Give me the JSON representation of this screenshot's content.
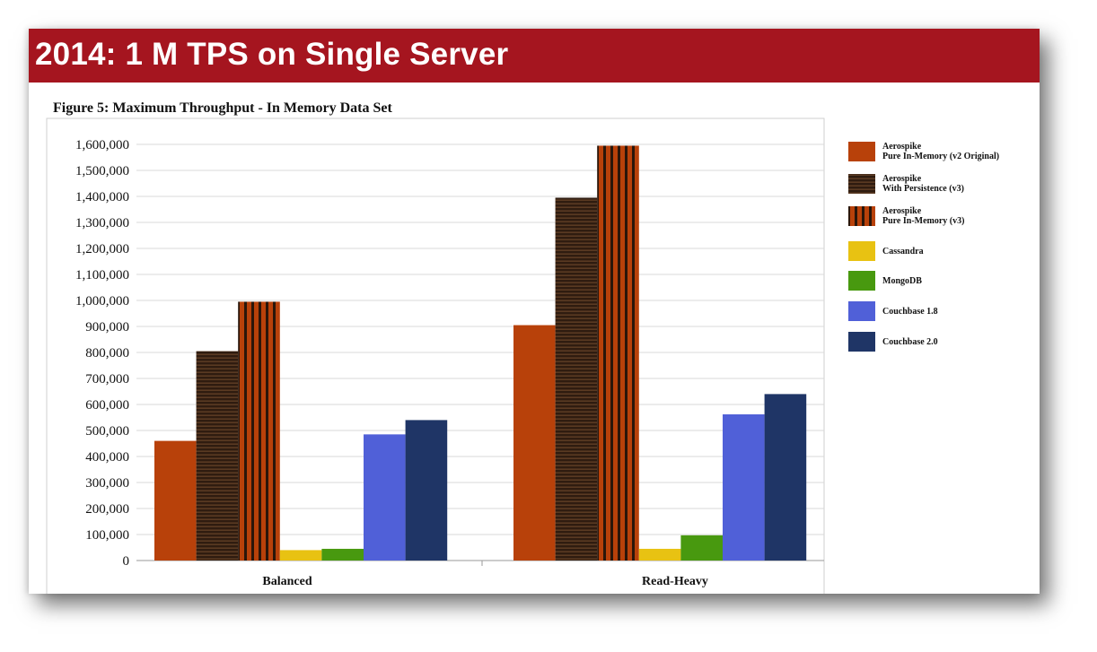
{
  "slide": {
    "title": "2014: 1 M TPS on Single Server"
  },
  "chart_data": {
    "type": "bar",
    "title": "Figure 5: Maximum Throughput - In Memory Data Set",
    "categories": [
      "Balanced",
      "Read-Heavy"
    ],
    "ylim": [
      0,
      1600000
    ],
    "yticks": [
      "0",
      "100,000",
      "200,000",
      "300,000",
      "400,000",
      "500,000",
      "600,000",
      "700,000",
      "800,000",
      "900,000",
      "1,000,000",
      "1,100,000",
      "1,200,000",
      "1,300,000",
      "1,400,000",
      "1,500,000",
      "1,600,000"
    ],
    "grid": true,
    "legend_position": "right",
    "series": [
      {
        "name": [
          "Aerospike",
          "Pure In-Memory (v2 Original)"
        ],
        "color": "#b8410a",
        "pattern": "solid",
        "values": [
          460000,
          905000
        ]
      },
      {
        "name": [
          "Aerospike",
          "With Persistence (v3)"
        ],
        "color": "#2f1c10",
        "pattern": "hstripes",
        "values": [
          805000,
          1395000
        ]
      },
      {
        "name": [
          "Aerospike",
          "Pure In-Memory (v3)"
        ],
        "color": "#b8410a",
        "pattern": "vstripes",
        "values": [
          995000,
          1595000
        ]
      },
      {
        "name": [
          "Cassandra"
        ],
        "color": "#e8c212",
        "pattern": "solid",
        "values": [
          40000,
          45000
        ]
      },
      {
        "name": [
          "MongoDB"
        ],
        "color": "#48990f",
        "pattern": "solid",
        "values": [
          45000,
          97000
        ]
      },
      {
        "name": [
          "Couchbase 1.8"
        ],
        "color": "#5060d8",
        "pattern": "solid",
        "values": [
          485000,
          562000
        ]
      },
      {
        "name": [
          "Couchbase 2.0"
        ],
        "color": "#1f3566",
        "pattern": "solid",
        "values": [
          540000,
          640000
        ]
      }
    ]
  }
}
